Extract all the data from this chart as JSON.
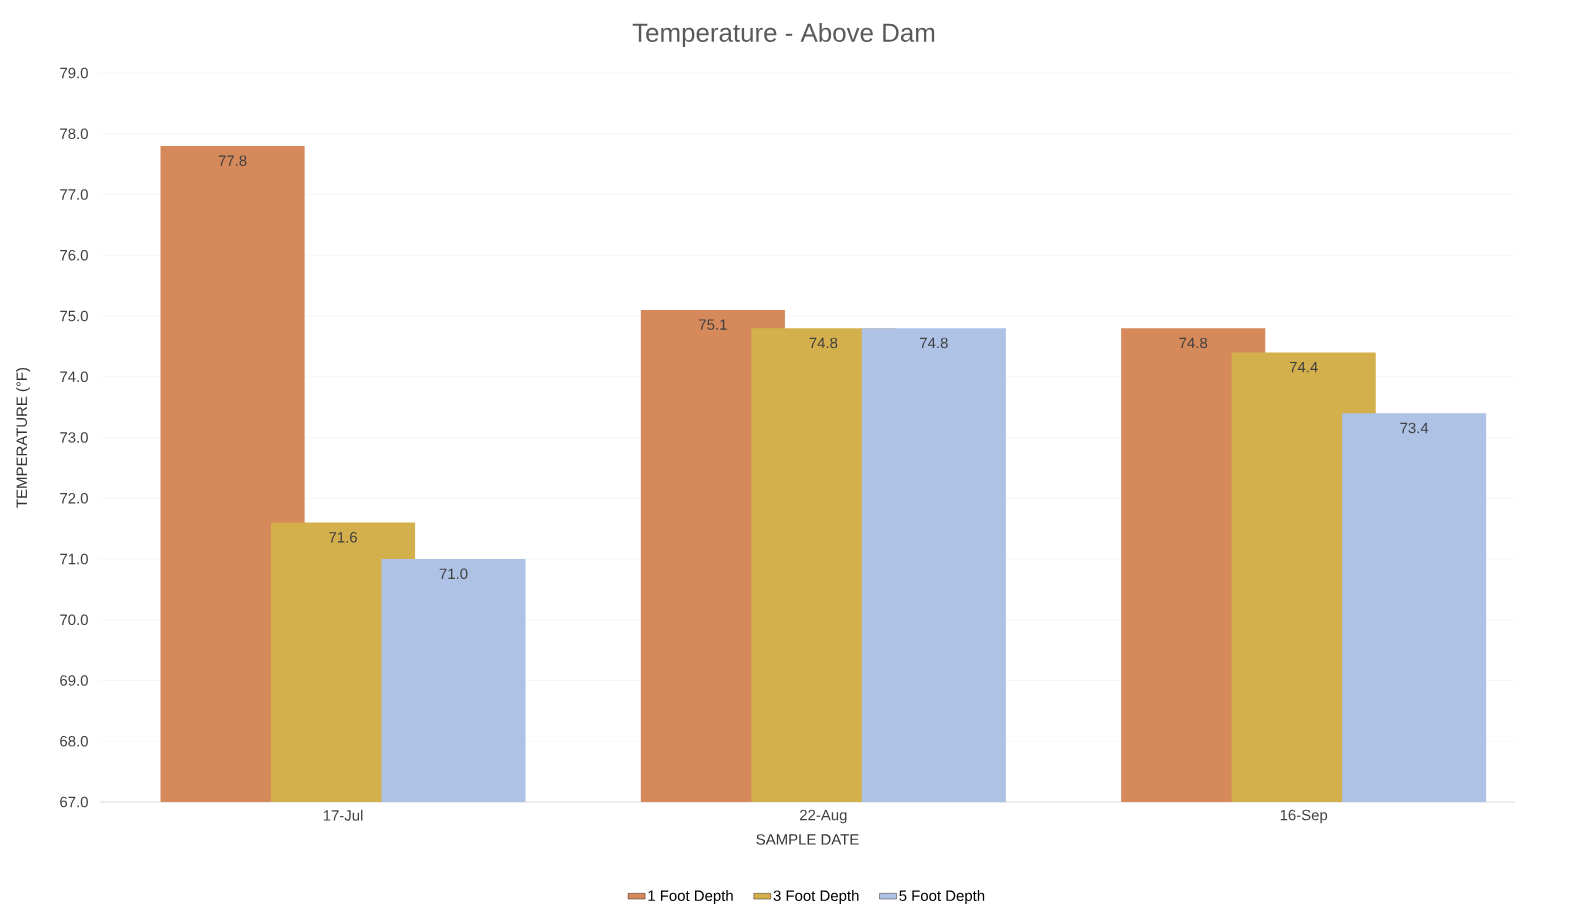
{
  "chart_data": {
    "type": "bar",
    "title": "Temperature - Above Dam",
    "xlabel": "SAMPLE DATE",
    "ylabel": "TEMPERATURE (°F)",
    "categories": [
      "17-Jul",
      "22-Aug",
      "16-Sep"
    ],
    "series": [
      {
        "name": "1 Foot Depth",
        "color": "#d6895a",
        "values": [
          77.8,
          75.1,
          74.8
        ],
        "value_labels": [
          "77.8",
          "75.1",
          "74.8"
        ]
      },
      {
        "name": "3 Foot Depth",
        "color": "#d4b04c",
        "values": [
          71.6,
          74.8,
          74.4
        ],
        "value_labels": [
          "71.6",
          "74.8",
          "74.4"
        ]
      },
      {
        "name": "5 Foot Depth",
        "color": "#aec2e6",
        "values": [
          71.0,
          74.8,
          73.4
        ],
        "value_labels": [
          "71.0",
          "74.8",
          "73.4"
        ]
      }
    ],
    "ylim": [
      67,
      79
    ],
    "yticks": [
      {
        "value": 67,
        "label": "67.0"
      },
      {
        "value": 68,
        "label": "68.0"
      },
      {
        "value": 69,
        "label": "69.0"
      },
      {
        "value": 70,
        "label": "70.0"
      },
      {
        "value": 71,
        "label": "71.0"
      },
      {
        "value": 72,
        "label": "72.0"
      },
      {
        "value": 73,
        "label": "73.0"
      },
      {
        "value": 74,
        "label": "74.0"
      },
      {
        "value": 75,
        "label": "75.0"
      },
      {
        "value": 76,
        "label": "76.0"
      },
      {
        "value": 77,
        "label": "77.0"
      },
      {
        "value": 78,
        "label": "78.0"
      },
      {
        "value": 79,
        "label": "79.0"
      }
    ],
    "grid": "y",
    "legend": "bottom"
  }
}
